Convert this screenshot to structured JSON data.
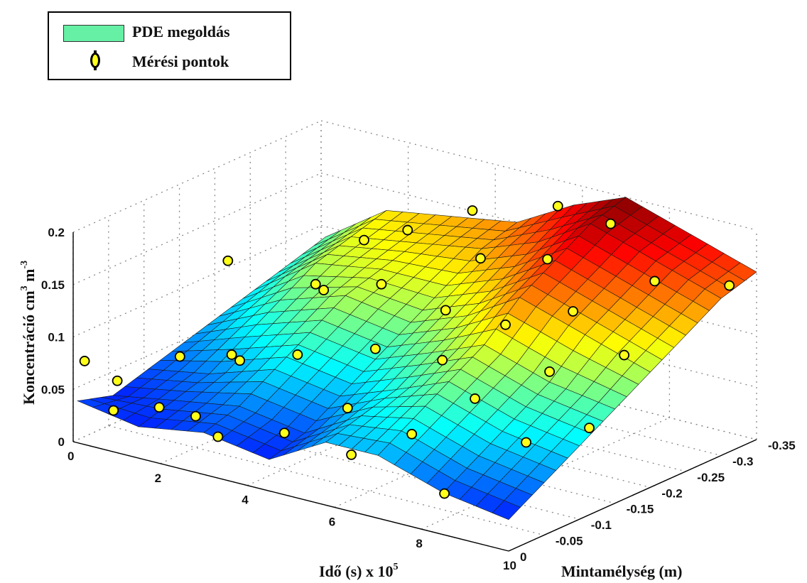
{
  "legend": {
    "items": [
      {
        "label": "PDE megoldás",
        "kind": "surface",
        "color": "#66f0a6"
      },
      {
        "label": "Mérési pontok",
        "kind": "marker",
        "color": "#ffff1a"
      }
    ]
  },
  "chart_data": {
    "type": "surface",
    "title": "",
    "xlabel": "Idő (s) x 10",
    "xlabel_sup": "5",
    "ylabel": "Mintamélység (m)",
    "zlabel": "Koncentráció",
    "zlabel_unit": "cm",
    "zlabel_unit_sup1": "3",
    "zlabel_unit_mid": " m",
    "zlabel_unit_sup2": "-3",
    "x_ticks": [
      "0",
      "2",
      "4",
      "6",
      "8",
      "10"
    ],
    "y_ticks": [
      "0",
      "-0.05",
      "-0.1",
      "-0.15",
      "-0.2",
      "-0.25",
      "-0.3",
      "-0.35"
    ],
    "z_ticks": [
      "0",
      "0.05",
      "0.1",
      "0.15",
      "0.2"
    ],
    "xlim": [
      0,
      10
    ],
    "ylim": [
      0,
      -0.35
    ],
    "zlim": [
      0,
      0.2
    ],
    "grid": true,
    "legend_position": "top-left",
    "colormap": "jet",
    "series": [
      {
        "name": "PDE megoldás",
        "kind": "surface",
        "time_x": [
          0.1,
          1.5,
          3.0,
          4.5,
          5.8,
          7.0,
          8.5,
          10.0
        ],
        "depth_y": [
          0,
          -0.05,
          -0.1,
          -0.15,
          -0.2,
          -0.25,
          -0.3,
          -0.35
        ],
        "z": [
          [
            0.04,
            0.03,
            0.04,
            0.05,
            0.06,
            0.07,
            0.08,
            0.09
          ],
          [
            0.03,
            0.04,
            0.05,
            0.07,
            0.09,
            0.11,
            0.12,
            0.13
          ],
          [
            0.04,
            0.05,
            0.07,
            0.09,
            0.11,
            0.12,
            0.13,
            0.14
          ],
          [
            0.03,
            0.04,
            0.06,
            0.08,
            0.1,
            0.12,
            0.14,
            0.15
          ],
          [
            0.06,
            0.07,
            0.08,
            0.1,
            0.12,
            0.14,
            0.16,
            0.18
          ],
          [
            0.06,
            0.08,
            0.1,
            0.12,
            0.15,
            0.17,
            0.19,
            0.2
          ],
          [
            0.04,
            0.06,
            0.08,
            0.1,
            0.13,
            0.15,
            0.17,
            0.18
          ],
          [
            0.03,
            0.05,
            0.07,
            0.09,
            0.11,
            0.13,
            0.15,
            0.16
          ]
        ]
      },
      {
        "name": "Mérési pontok",
        "kind": "scatter",
        "points": [
          [
            0.1,
            -0.01,
            0.075
          ],
          [
            0.2,
            -0.05,
            0.045
          ],
          [
            0.5,
            -0.12,
            0.05
          ],
          [
            0.3,
            -0.2,
            0.115
          ],
          [
            0.6,
            -0.02,
            0.03
          ],
          [
            1.0,
            -0.06,
            0.025
          ],
          [
            1.2,
            -0.15,
            0.05
          ],
          [
            1.5,
            -0.25,
            0.09
          ],
          [
            1.8,
            -0.3,
            0.12
          ],
          [
            2.0,
            -0.05,
            0.03
          ],
          [
            2.2,
            -0.1,
            0.07
          ],
          [
            2.5,
            -0.2,
            0.11
          ],
          [
            2.8,
            -0.3,
            0.14
          ],
          [
            3.0,
            -0.02,
            0.03
          ],
          [
            3.2,
            -0.12,
            0.08
          ],
          [
            3.5,
            -0.22,
            0.12
          ],
          [
            3.8,
            -0.33,
            0.16
          ],
          [
            4.2,
            -0.04,
            0.04
          ],
          [
            4.5,
            -0.15,
            0.09
          ],
          [
            4.8,
            -0.28,
            0.14
          ],
          [
            5.0,
            -0.08,
            0.06
          ],
          [
            5.3,
            -0.2,
            0.12
          ],
          [
            5.6,
            -0.34,
            0.18
          ],
          [
            5.9,
            -0.03,
            0.04
          ],
          [
            6.2,
            -0.14,
            0.1
          ],
          [
            6.5,
            -0.27,
            0.16
          ],
          [
            6.8,
            -0.06,
            0.06
          ],
          [
            7.0,
            -0.18,
            0.13
          ],
          [
            7.3,
            -0.31,
            0.19
          ],
          [
            7.6,
            -0.1,
            0.09
          ],
          [
            7.9,
            -0.22,
            0.14
          ],
          [
            8.2,
            -0.02,
            0.03
          ],
          [
            8.5,
            -0.15,
            0.11
          ],
          [
            8.8,
            -0.28,
            0.16
          ],
          [
            9.1,
            -0.08,
            0.07
          ],
          [
            9.4,
            -0.2,
            0.12
          ],
          [
            9.7,
            -0.33,
            0.15
          ],
          [
            9.9,
            -0.12,
            0.08
          ]
        ]
      }
    ]
  }
}
